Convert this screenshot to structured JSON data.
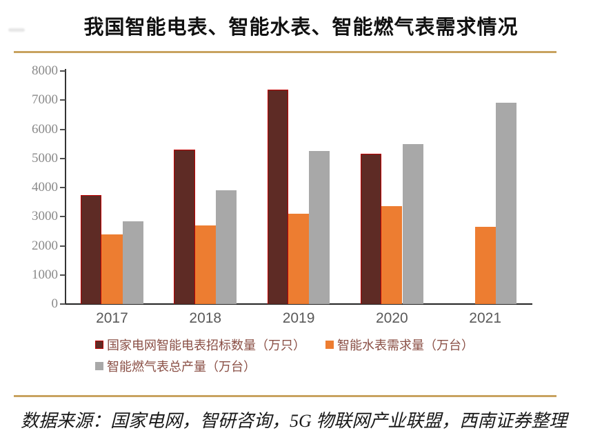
{
  "page": {
    "title": "我国智能电表、智能水表、智能燃气表需求情况",
    "source_note": "数据来源：国家电网，智研咨询，5G 物联网产业联盟，西南证券整理",
    "accent_line_color": "#C8A25F"
  },
  "chart_data": {
    "type": "bar",
    "title": "我国智能电表、智能水表、智能燃气表需求情况",
    "categories": [
      "2017",
      "2018",
      "2019",
      "2020",
      "2021"
    ],
    "series": [
      {
        "name": "国家电网智能电表招标数量（万只）",
        "color": "#5E2B25",
        "border_color": "#C00000",
        "values": [
          3750,
          5300,
          7350,
          5150,
          null
        ]
      },
      {
        "name": "智能水表需求量（万台）",
        "color": "#ED7D31",
        "values": [
          2400,
          2700,
          3100,
          3350,
          2650
        ]
      },
      {
        "name": "智能燃气表总产量（万台）",
        "color": "#A8A8A8",
        "values": [
          2850,
          3900,
          5250,
          5500,
          6900
        ]
      }
    ],
    "ylim": [
      0,
      8000
    ],
    "yticks": [
      0,
      1000,
      2000,
      3000,
      4000,
      5000,
      6000,
      7000,
      8000
    ],
    "grid": false,
    "legend_position": "bottom",
    "xlabel": "",
    "ylabel": ""
  }
}
